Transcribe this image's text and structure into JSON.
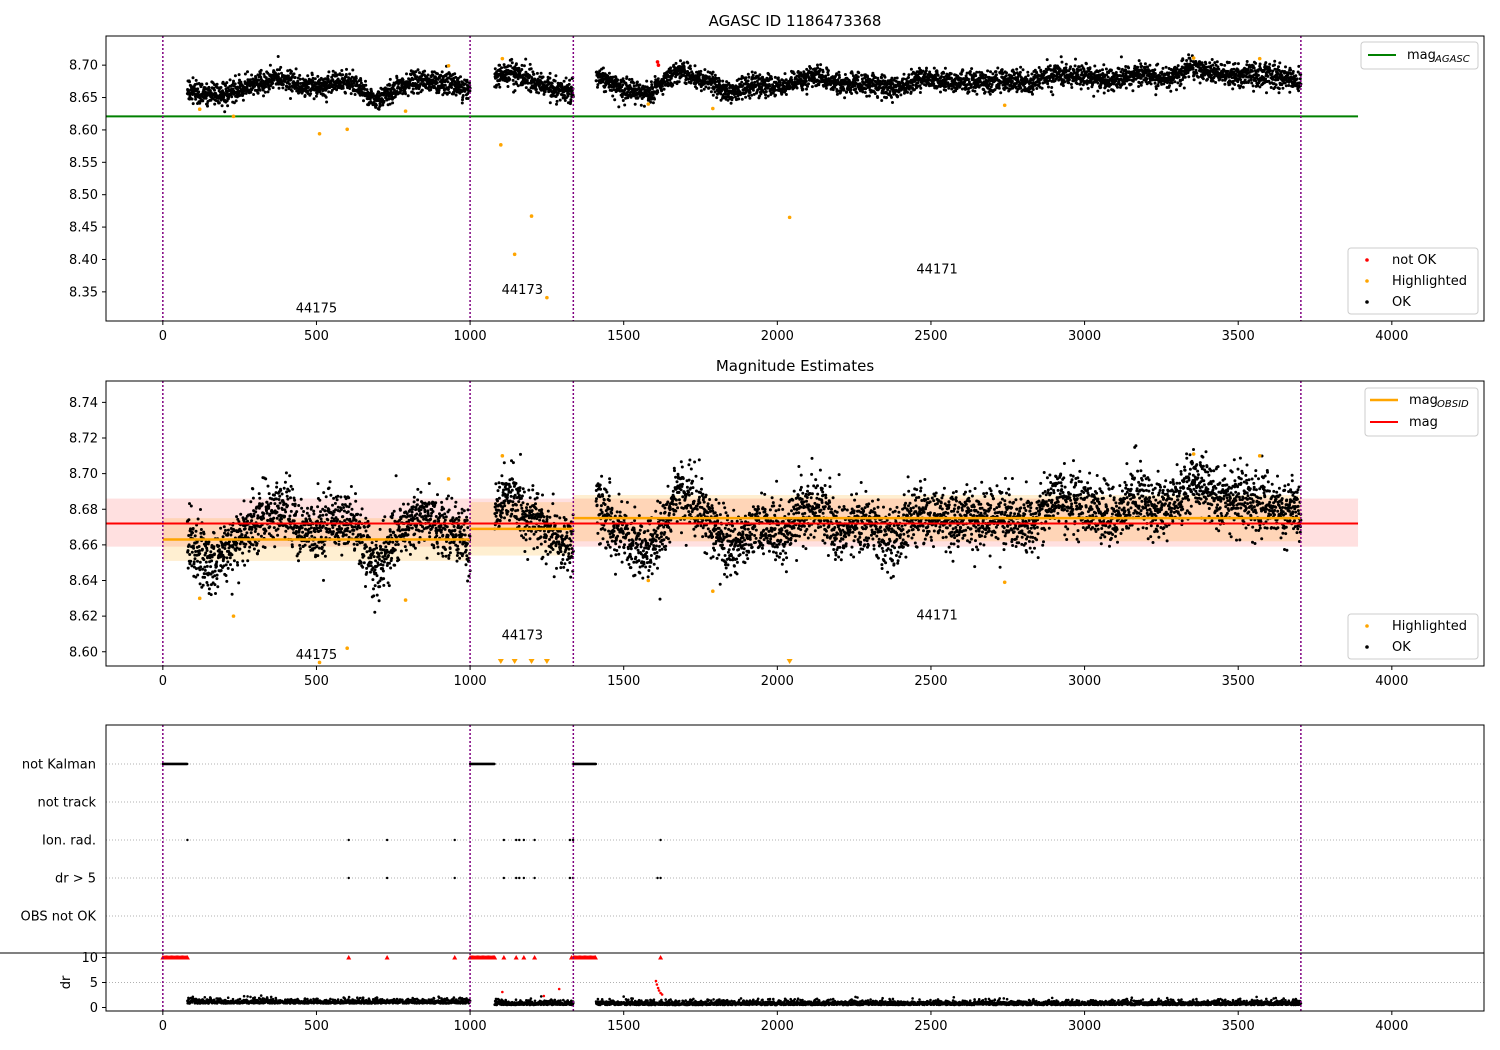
{
  "chart_data": [
    {
      "type": "scatter",
      "title": "AGASC ID 1186473368",
      "xlim": [
        -185,
        4300
      ],
      "ylim": [
        8.305,
        8.745
      ],
      "x_ticks": [
        "0",
        "500",
        "1000",
        "1500",
        "2000",
        "2500",
        "3000",
        "3500",
        "4000"
      ],
      "y_ticks": [
        "8.35",
        "8.40",
        "8.45",
        "8.50",
        "8.55",
        "8.60",
        "8.65",
        "8.70"
      ],
      "obsid_boundaries": [
        0,
        1000,
        1336,
        3704
      ],
      "obsid_labels": [
        {
          "text": "44175",
          "x": 500,
          "y": 8.318
        },
        {
          "text": "44173",
          "x": 1170,
          "y": 8.347
        },
        {
          "text": "44171",
          "x": 2520,
          "y": 8.378
        }
      ],
      "reference_lines": [
        {
          "name": "mag_AGASC",
          "legend_label": "mag",
          "legend_sub": "AGASC",
          "value": 8.621,
          "color": "#008000",
          "x_range": [
            -185,
            3890
          ]
        }
      ],
      "legend_markers": [
        {
          "label": "not OK",
          "color": "#ff0000"
        },
        {
          "label": "Highlighted",
          "color": "#ffa500"
        },
        {
          "label": "OK",
          "color": "#000000"
        }
      ],
      "segments": [
        {
          "x": [
            80,
            1000
          ],
          "means": [
            8.662,
            8.652,
            8.66,
            8.673,
            8.68,
            8.666,
            8.672,
            8.675,
            8.645,
            8.668,
            8.677,
            8.672,
            8.66
          ]
        },
        {
          "x": [
            1080,
            1336
          ],
          "means": [
            8.681,
            8.687,
            8.678,
            8.672,
            8.661,
            8.66
          ]
        },
        {
          "x": [
            1410,
            3704
          ],
          "means": [
            8.684,
            8.663,
            8.656,
            8.69,
            8.677,
            8.658,
            8.671,
            8.668,
            8.684,
            8.669,
            8.673,
            8.663,
            8.68,
            8.674,
            8.675,
            8.676,
            8.671,
            8.688,
            8.682,
            8.676,
            8.688,
            8.678,
            8.697,
            8.686,
            8.685,
            8.682,
            8.677
          ]
        }
      ],
      "highlighted": [
        [
          120,
          8.632
        ],
        [
          230,
          8.621
        ],
        [
          510,
          8.594
        ],
        [
          600,
          8.601
        ],
        [
          790,
          8.629
        ],
        [
          930,
          8.699
        ],
        [
          1100,
          8.577
        ],
        [
          1105,
          8.71
        ],
        [
          1145,
          8.408
        ],
        [
          1200,
          8.467
        ],
        [
          1250,
          8.341
        ],
        [
          1580,
          8.64
        ],
        [
          1790,
          8.633
        ],
        [
          2040,
          8.465
        ],
        [
          2740,
          8.638
        ],
        [
          3355,
          8.711
        ],
        [
          3570,
          8.71
        ]
      ],
      "not_ok": [
        [
          1610,
          8.705
        ],
        [
          1613,
          8.7
        ]
      ]
    },
    {
      "type": "scatter",
      "title": "Magnitude Estimates",
      "xlim": [
        -185,
        4300
      ],
      "ylim": [
        8.592,
        8.752
      ],
      "x_ticks": [
        "0",
        "500",
        "1000",
        "1500",
        "2000",
        "2500",
        "3000",
        "3500",
        "4000"
      ],
      "y_ticks": [
        "8.60",
        "8.62",
        "8.64",
        "8.66",
        "8.68",
        "8.70",
        "8.72",
        "8.74"
      ],
      "obsid_boundaries": [
        0,
        1000,
        1336,
        3704
      ],
      "obsid_labels": [
        {
          "text": "44175",
          "x": 500,
          "y": 8.596
        },
        {
          "text": "44173",
          "x": 1170,
          "y": 8.607
        },
        {
          "text": "44171",
          "x": 2520,
          "y": 8.618
        }
      ],
      "mag": {
        "value": 8.672,
        "band": [
          8.659,
          8.686
        ],
        "x_range": [
          -185,
          3890
        ],
        "color": "#ff0000",
        "legend_label": "mag"
      },
      "mag_obsid": [
        {
          "x": [
            0,
            1000
          ],
          "value": 8.663,
          "band": [
            8.651,
            8.675
          ]
        },
        {
          "x": [
            1000,
            1336
          ],
          "value": 8.669,
          "band": [
            8.654,
            8.684
          ]
        },
        {
          "x": [
            1336,
            3704
          ],
          "value": 8.675,
          "band": [
            8.662,
            8.688
          ]
        }
      ],
      "mag_obsid_legend": {
        "label": "mag",
        "sub": "OBSID",
        "color": "#ffa500"
      },
      "legend_markers": [
        {
          "label": "Highlighted",
          "color": "#ffa500"
        },
        {
          "label": "OK",
          "color": "#000000"
        }
      ],
      "highlighted": [
        [
          120,
          8.63
        ],
        [
          230,
          8.62
        ],
        [
          510,
          8.594
        ],
        [
          600,
          8.602
        ],
        [
          790,
          8.629
        ],
        [
          930,
          8.697
        ],
        [
          1105,
          8.71
        ],
        [
          1580,
          8.64
        ],
        [
          1790,
          8.634
        ],
        [
          2740,
          8.639
        ],
        [
          3355,
          8.711
        ],
        [
          3570,
          8.71
        ]
      ],
      "below_range_markers": [
        1100,
        1145,
        1200,
        1250,
        2040
      ]
    },
    {
      "type": "scatter",
      "title": "",
      "xlim": [
        -185,
        4300
      ],
      "x_ticks": [
        "0",
        "500",
        "1000",
        "1500",
        "2000",
        "2500",
        "3000",
        "3500",
        "4000"
      ],
      "flag_rows": [
        "not Kalman",
        "not track",
        "Ion. rad.",
        "dr > 5",
        "OBS not OK"
      ],
      "obsid_boundaries": [
        0,
        1000,
        1336,
        3704
      ],
      "flag_points": {
        "not Kalman": [
          [
            0,
            80
          ],
          [
            1000,
            1080
          ],
          [
            1336,
            1410
          ]
        ],
        "not track": [],
        "Ion. rad.": [
          80,
          605,
          730,
          950,
          1110,
          1150,
          1160,
          1175,
          1210,
          1325,
          1335,
          1620
        ],
        "dr > 5": [
          605,
          730,
          950,
          1110,
          1150,
          1160,
          1175,
          1210,
          1325,
          1335,
          1610,
          1620
        ],
        "OBS not OK": []
      },
      "dr_axis": {
        "label": "dr",
        "ticks": [
          "0",
          "5",
          "10"
        ],
        "ylim": [
          -0.5,
          10.5
        ]
      },
      "dr_clipped": [
        [
          0,
          80
        ],
        [
          1000,
          1080
        ],
        [
          1336,
          1410
        ]
      ],
      "dr_clipped_single": [
        605,
        730,
        950,
        1110,
        1150,
        1175,
        1210,
        1330,
        1620
      ],
      "dr_outliers": [
        [
          1105,
          3.1
        ],
        [
          1290,
          3.7
        ],
        [
          1605,
          5.3
        ],
        [
          1608,
          4.6
        ],
        [
          1612,
          3.9
        ],
        [
          1615,
          3.4
        ],
        [
          1620,
          2.9
        ],
        [
          1625,
          2.6
        ],
        [
          1240,
          2.3
        ]
      ]
    }
  ]
}
